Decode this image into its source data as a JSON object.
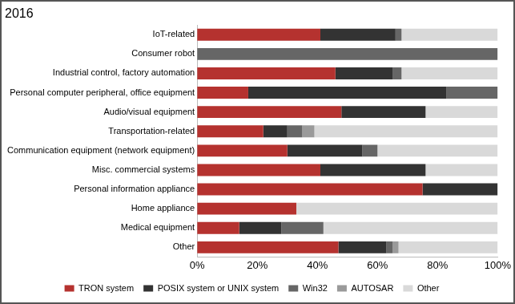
{
  "chart_data": {
    "type": "bar",
    "title": "2016",
    "orientation": "horizontal",
    "stacked": true,
    "grid": false,
    "legend": "bottom",
    "categories": [
      "IoT-related",
      "Consumer robot",
      "Industrial control, factory automation",
      "Personal computer peripheral, office equipment",
      "Audio/visual equipment",
      "Transportation-related",
      "Communication equipment (network equipment)",
      "Misc. commercial systems",
      "Personal information appliance",
      "Home appliance",
      "Medical equipment",
      "Other"
    ],
    "series": [
      {
        "name": "TRON system",
        "color": "#b5322f",
        "values": [
          41,
          0,
          46,
          17,
          48,
          22,
          30,
          41,
          75,
          33,
          14,
          47
        ]
      },
      {
        "name": "POSIX system or UNIX system",
        "color": "#333333",
        "values": [
          25,
          0,
          19,
          66,
          28,
          8,
          25,
          35,
          25,
          0,
          14,
          16
        ]
      },
      {
        "name": "Win32",
        "color": "#666666",
        "values": [
          2,
          100,
          3,
          17,
          0,
          5,
          5,
          0,
          0,
          0,
          14,
          2
        ]
      },
      {
        "name": "AUTOSAR",
        "color": "#9a9a9a",
        "values": [
          0,
          0,
          0,
          0,
          0,
          4,
          0,
          0,
          0,
          0,
          0,
          2
        ]
      },
      {
        "name": "Other",
        "color": "#d9d9d9",
        "values": [
          32,
          0,
          32,
          0,
          24,
          61,
          40,
          24,
          0,
          67,
          58,
          33
        ]
      }
    ],
    "xlim": [
      0,
      100
    ],
    "xticks": [
      {
        "value": 0,
        "label": "0%"
      },
      {
        "value": 20,
        "label": "20%"
      },
      {
        "value": 40,
        "label": "40%"
      },
      {
        "value": 60,
        "label": "60%"
      },
      {
        "value": 80,
        "label": "80%"
      },
      {
        "value": 100,
        "label": "100%"
      }
    ]
  }
}
